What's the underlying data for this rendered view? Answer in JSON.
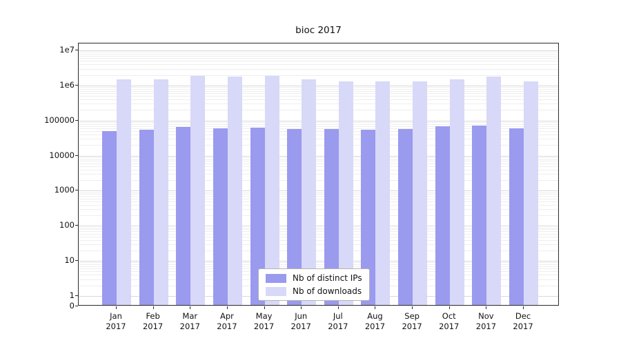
{
  "chart_data": {
    "type": "bar",
    "title": "bioc 2017",
    "x_tick_line1": [
      "Jan",
      "Feb",
      "Mar",
      "Apr",
      "May",
      "Jun",
      "Jul",
      "Aug",
      "Sep",
      "Oct",
      "Nov",
      "Dec"
    ],
    "x_tick_line2": "2017",
    "categories": [
      "Jan 2017",
      "Feb 2017",
      "Mar 2017",
      "Apr 2017",
      "May 2017",
      "Jun 2017",
      "Jul 2017",
      "Aug 2017",
      "Sep 2017",
      "Oct 2017",
      "Nov 2017",
      "Dec 2017"
    ],
    "series": [
      {
        "name": "Nb of distinct IPs",
        "color": "#9a9aef",
        "values": [
          46000,
          50000,
          61000,
          55000,
          58000,
          53000,
          52000,
          49000,
          53000,
          63000,
          66000,
          55000
        ]
      },
      {
        "name": "Nb of downloads",
        "color": "#d8d8f8",
        "values": [
          1350000,
          1350000,
          1750000,
          1600000,
          1750000,
          1350000,
          1200000,
          1200000,
          1200000,
          1350000,
          1650000,
          1200000
        ]
      }
    ],
    "y_axis": {
      "scale": "symlog",
      "ticks": [
        0,
        1,
        10,
        100,
        1000,
        10000,
        100000,
        1000000,
        10000000
      ],
      "tick_labels": [
        "0",
        "1",
        "10",
        "100",
        "1000",
        "10000",
        "100000",
        "1e6",
        "1e7"
      ]
    },
    "x_axis": {
      "label": ""
    },
    "grid": true,
    "legend": {
      "position": "lower center"
    }
  }
}
